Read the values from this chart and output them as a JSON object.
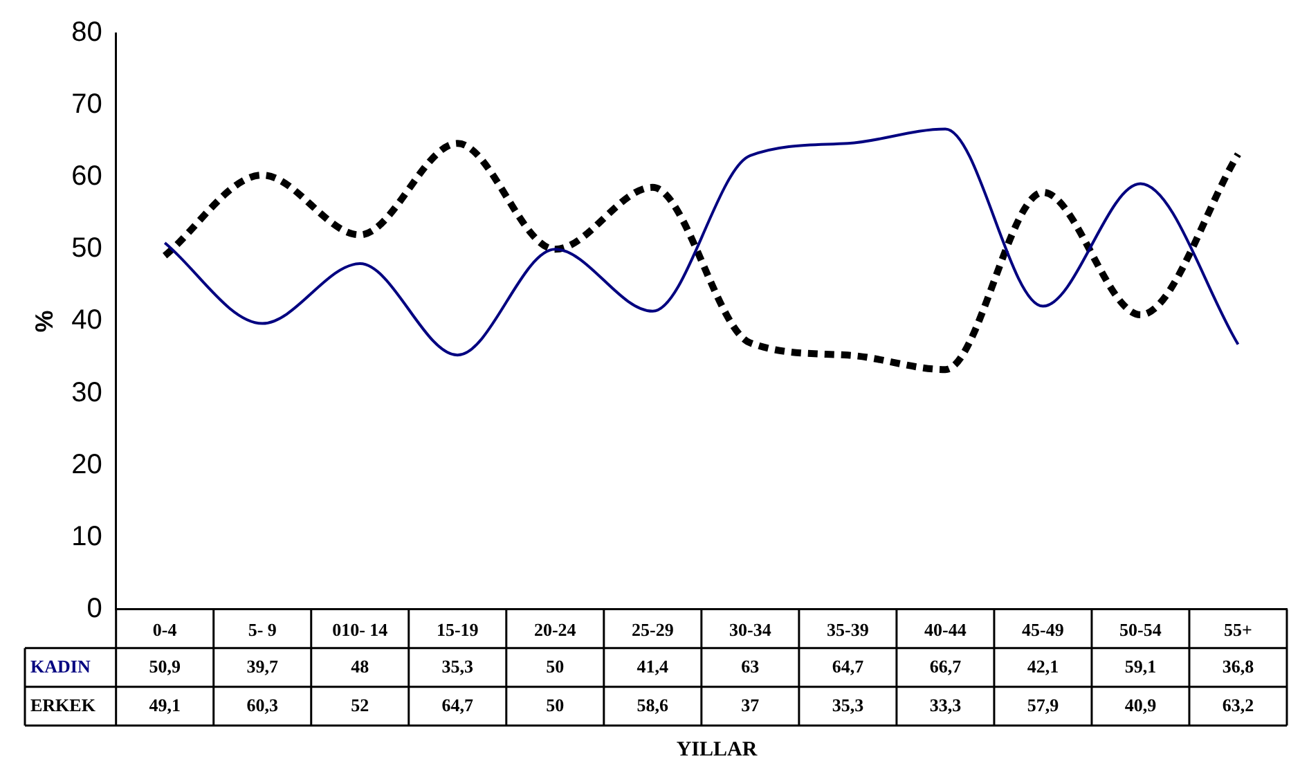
{
  "chart_data": {
    "type": "line",
    "ylabel": "%",
    "xlabel": "YILLAR",
    "categories": [
      "0-4",
      "5- 9",
      "010- 14",
      "15-19",
      "20-24",
      "25-29",
      "30-34",
      "35-39",
      "40-44",
      "45-49",
      "50-54",
      "55+"
    ],
    "series": [
      {
        "name": "KADIN",
        "color": "#000080",
        "line_style": "solid",
        "values": [
          50.9,
          39.7,
          48,
          35.3,
          50,
          41.4,
          63,
          64.7,
          66.7,
          42.1,
          59.1,
          36.8
        ],
        "value_labels": [
          "50,9",
          "39,7",
          "48",
          "35,3",
          "50",
          "41,4",
          "63",
          "64,7",
          "66,7",
          "42,1",
          "59,1",
          "36,8"
        ]
      },
      {
        "name": "ERKEK",
        "color": "#000000",
        "line_style": "dashed",
        "values": [
          49.1,
          60.3,
          52,
          64.7,
          50,
          58.6,
          37,
          35.3,
          33.3,
          57.9,
          40.9,
          63.2
        ],
        "value_labels": [
          "49,1",
          "60,3",
          "52",
          "64,7",
          "50",
          "58,6",
          "37",
          "35,3",
          "33,3",
          "57,9",
          "40,9",
          "63,2"
        ]
      }
    ],
    "ylim": [
      0,
      80
    ],
    "yticks": [
      0,
      10,
      20,
      30,
      40,
      50,
      60,
      70,
      80
    ],
    "grid": false,
    "legend": false,
    "marker": "none"
  }
}
